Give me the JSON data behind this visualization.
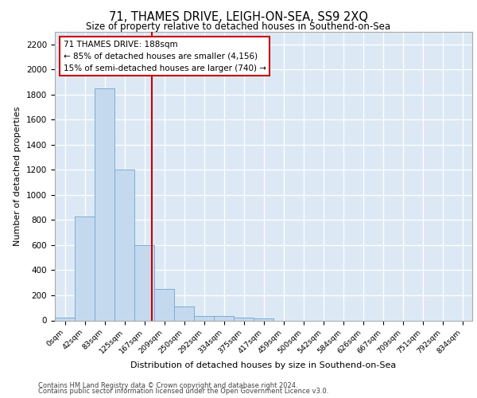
{
  "title": "71, THAMES DRIVE, LEIGH-ON-SEA, SS9 2XQ",
  "subtitle": "Size of property relative to detached houses in Southend-on-Sea",
  "xlabel": "Distribution of detached houses by size in Southend-on-Sea",
  "ylabel": "Number of detached properties",
  "bar_color": "#c5d9ee",
  "bar_edge_color": "#7aadd4",
  "bin_labels": [
    "0sqm",
    "42sqm",
    "83sqm",
    "125sqm",
    "167sqm",
    "209sqm",
    "250sqm",
    "292sqm",
    "334sqm",
    "375sqm",
    "417sqm",
    "459sqm",
    "500sqm",
    "542sqm",
    "584sqm",
    "626sqm",
    "667sqm",
    "709sqm",
    "751sqm",
    "792sqm",
    "834sqm"
  ],
  "bar_values": [
    20,
    830,
    1850,
    1200,
    600,
    250,
    110,
    35,
    35,
    25,
    15,
    0,
    0,
    0,
    0,
    0,
    0,
    0,
    0,
    0,
    0
  ],
  "ylim": [
    0,
    2300
  ],
  "yticks": [
    0,
    200,
    400,
    600,
    800,
    1000,
    1200,
    1400,
    1600,
    1800,
    2000,
    2200
  ],
  "property_line_x": 4.88,
  "annotation_text": "71 THAMES DRIVE: 188sqm\n← 85% of detached houses are smaller (4,156)\n15% of semi-detached houses are larger (740) →",
  "annotation_box_facecolor": "#ffffff",
  "annotation_box_edgecolor": "#cc0000",
  "property_line_color": "#cc0000",
  "footer_line1": "Contains HM Land Registry data © Crown copyright and database right 2024.",
  "footer_line2": "Contains public sector information licensed under the Open Government Licence v3.0.",
  "plot_bg_color": "#dce9f5",
  "fig_bg_color": "#ffffff"
}
